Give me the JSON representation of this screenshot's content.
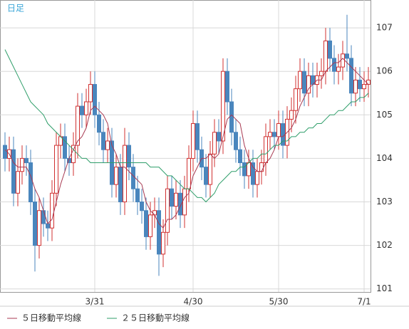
{
  "chart_data": {
    "type": "candlestick",
    "label": "日足",
    "categories": [
      null,
      null,
      null,
      null,
      null,
      null,
      null,
      null,
      null,
      null,
      null,
      null,
      null,
      null,
      null,
      null,
      null,
      null,
      null,
      null,
      null,
      "3/31",
      null,
      null,
      null,
      null,
      null,
      null,
      null,
      null,
      null,
      null,
      null,
      null,
      null,
      null,
      null,
      null,
      null,
      null,
      null,
      null,
      null,
      null,
      "4/30",
      null,
      null,
      null,
      null,
      null,
      null,
      null,
      null,
      null,
      null,
      null,
      null,
      null,
      null,
      null,
      null,
      null,
      null,
      null,
      "5/30",
      null,
      null,
      null,
      null,
      null,
      null,
      null,
      null,
      null,
      null,
      null,
      null,
      null,
      null,
      null,
      null,
      null,
      null,
      null,
      "7/1",
      null
    ],
    "open": [
      104.3,
      104.0,
      104.2,
      103.2,
      103.7,
      104.0,
      103.9,
      103.0,
      102.0,
      102.8,
      102.5,
      102.4,
      103.2,
      104.3,
      104.5,
      104.0,
      103.9,
      104.3,
      105.2,
      105.0,
      105.3,
      105.7,
      105.0,
      104.6,
      104.2,
      104.4,
      103.4,
      103.8,
      103.0,
      104.3,
      103.8,
      103.3,
      103.0,
      102.8,
      102.2,
      102.7,
      102.8,
      101.8,
      102.3,
      103.3,
      102.9,
      103.2,
      102.7,
      103.3,
      104.0,
      104.8,
      104.2,
      103.8,
      103.4,
      104.1,
      104.6,
      104.4,
      106.0,
      105.3,
      104.6,
      104.2,
      103.9,
      103.6,
      103.9,
      103.4,
      103.7,
      103.9,
      104.5,
      104.6,
      104.5,
      104.8,
      104.3,
      104.9,
      105.1,
      105.6,
      106.0,
      105.5,
      105.9,
      105.7,
      105.9,
      106.0,
      106.7,
      106.3,
      106.0,
      106.1,
      106.4,
      106.3,
      105.5,
      105.8,
      105.6,
      105.7
    ],
    "high": [
      104.6,
      104.5,
      104.5,
      104.0,
      104.3,
      104.3,
      104.2,
      103.3,
      103.1,
      103.1,
      102.8,
      103.5,
      104.6,
      104.8,
      104.8,
      104.3,
      104.6,
      105.5,
      105.5,
      105.6,
      106.0,
      106.0,
      105.3,
      104.9,
      104.7,
      104.7,
      104.1,
      104.1,
      104.7,
      104.6,
      104.1,
      103.6,
      103.3,
      103.1,
      103.0,
      103.1,
      103.1,
      102.6,
      103.6,
      103.6,
      103.5,
      103.5,
      103.6,
      104.3,
      105.1,
      105.1,
      104.5,
      104.1,
      104.4,
      104.9,
      104.9,
      106.3,
      106.3,
      105.6,
      104.9,
      104.5,
      104.2,
      104.2,
      104.2,
      104.0,
      104.2,
      104.8,
      104.9,
      104.9,
      105.1,
      105.1,
      105.2,
      105.4,
      105.9,
      106.3,
      106.3,
      106.2,
      106.2,
      106.2,
      106.3,
      107.0,
      107.0,
      106.6,
      106.4,
      106.7,
      107.3,
      106.6,
      106.1,
      106.1,
      106.0,
      106.1
    ],
    "low": [
      103.7,
      103.7,
      102.9,
      102.9,
      103.4,
      103.6,
      102.7,
      101.4,
      101.7,
      102.2,
      102.1,
      102.1,
      102.9,
      104.0,
      103.7,
      103.6,
      103.6,
      104.0,
      104.7,
      104.7,
      105.0,
      104.7,
      104.3,
      103.9,
      103.9,
      103.1,
      103.1,
      102.7,
      102.7,
      103.5,
      103.0,
      102.7,
      102.5,
      101.9,
      101.9,
      102.4,
      101.3,
      101.5,
      102.0,
      102.6,
      102.6,
      102.4,
      102.4,
      103.0,
      103.7,
      103.9,
      103.5,
      103.1,
      103.1,
      103.8,
      104.1,
      104.1,
      105.0,
      104.3,
      103.9,
      103.6,
      103.3,
      103.3,
      103.1,
      103.1,
      103.4,
      103.6,
      104.2,
      104.2,
      104.2,
      104.0,
      104.0,
      104.6,
      104.8,
      105.3,
      105.2,
      105.2,
      105.4,
      105.4,
      105.6,
      105.7,
      106.0,
      105.7,
      105.7,
      105.8,
      106.0,
      105.2,
      105.2,
      105.3,
      105.3,
      105.4
    ],
    "close": [
      104.0,
      104.2,
      103.2,
      103.7,
      104.0,
      103.9,
      103.0,
      102.0,
      102.8,
      102.5,
      102.4,
      103.2,
      104.3,
      104.5,
      104.0,
      103.9,
      104.3,
      105.2,
      105.0,
      105.3,
      105.7,
      105.0,
      104.6,
      104.2,
      104.4,
      103.4,
      103.8,
      103.0,
      104.3,
      103.8,
      103.3,
      103.0,
      102.8,
      102.2,
      102.7,
      102.8,
      101.8,
      102.3,
      103.3,
      102.9,
      103.2,
      102.7,
      103.3,
      104.0,
      104.8,
      104.2,
      103.8,
      103.4,
      104.1,
      104.6,
      104.4,
      106.0,
      105.3,
      104.6,
      104.2,
      103.9,
      103.6,
      103.9,
      103.4,
      103.7,
      103.9,
      104.5,
      104.6,
      104.5,
      104.8,
      104.3,
      104.9,
      105.1,
      105.6,
      106.0,
      105.5,
      105.9,
      105.7,
      105.9,
      106.0,
      106.7,
      106.3,
      106.0,
      106.1,
      106.4,
      106.3,
      105.5,
      105.8,
      105.6,
      105.7,
      105.8
    ],
    "up_color": "#d03030",
    "down_color": "#4a86bd",
    "series": [
      {
        "name": "５日移動平均線",
        "color": "#a83a52",
        "values": [
          104.2,
          104.1,
          103.9,
          103.8,
          103.8,
          103.8,
          103.6,
          103.3,
          103.1,
          102.8,
          102.5,
          102.6,
          103.0,
          103.4,
          103.7,
          104.0,
          104.2,
          104.4,
          104.5,
          104.7,
          105.1,
          105.2,
          105.1,
          105.0,
          104.8,
          104.3,
          104.1,
          103.8,
          103.8,
          103.7,
          103.6,
          103.5,
          103.4,
          103.0,
          102.8,
          102.7,
          102.5,
          102.4,
          102.6,
          102.6,
          102.7,
          102.9,
          103.1,
          103.2,
          103.6,
          103.8,
          104.0,
          104.0,
          104.1,
          104.0,
          104.1,
          104.5,
          104.9,
          105.0,
          104.9,
          104.8,
          104.3,
          104.0,
          103.8,
          103.7,
          103.7,
          103.9,
          104.0,
          104.2,
          104.5,
          104.5,
          104.6,
          104.7,
          104.9,
          105.2,
          105.4,
          105.6,
          105.7,
          105.8,
          105.8,
          106.0,
          106.1,
          106.2,
          106.2,
          106.3,
          106.2,
          106.1,
          106.0,
          105.9,
          105.8,
          105.7
        ]
      },
      {
        "name": "２５日移動平均線",
        "color": "#2f9e6a",
        "values": [
          106.5,
          106.3,
          106.1,
          105.9,
          105.7,
          105.5,
          105.3,
          105.2,
          105.1,
          105.0,
          104.8,
          104.7,
          104.6,
          104.5,
          104.4,
          104.3,
          104.2,
          104.1,
          104.0,
          104.0,
          103.9,
          103.9,
          103.9,
          103.9,
          103.9,
          103.9,
          103.9,
          103.9,
          103.9,
          103.9,
          103.9,
          103.9,
          103.9,
          103.9,
          103.8,
          103.8,
          103.8,
          103.7,
          103.6,
          103.6,
          103.5,
          103.4,
          103.3,
          103.3,
          103.2,
          103.1,
          103.1,
          103.0,
          103.1,
          103.2,
          103.4,
          103.5,
          103.6,
          103.7,
          103.7,
          103.8,
          103.8,
          103.9,
          104.0,
          104.0,
          104.1,
          104.1,
          104.2,
          104.3,
          104.3,
          104.4,
          104.4,
          104.5,
          104.5,
          104.6,
          104.6,
          104.7,
          104.7,
          104.8,
          104.8,
          104.9,
          105.0,
          105.0,
          105.1,
          105.1,
          105.2,
          105.3,
          105.3,
          105.4,
          105.4,
          105.5
        ]
      }
    ],
    "ylim": [
      100.93,
      107.64
    ],
    "yticks": [
      101,
      102,
      103,
      104,
      105,
      106,
      107
    ],
    "grid": true
  }
}
